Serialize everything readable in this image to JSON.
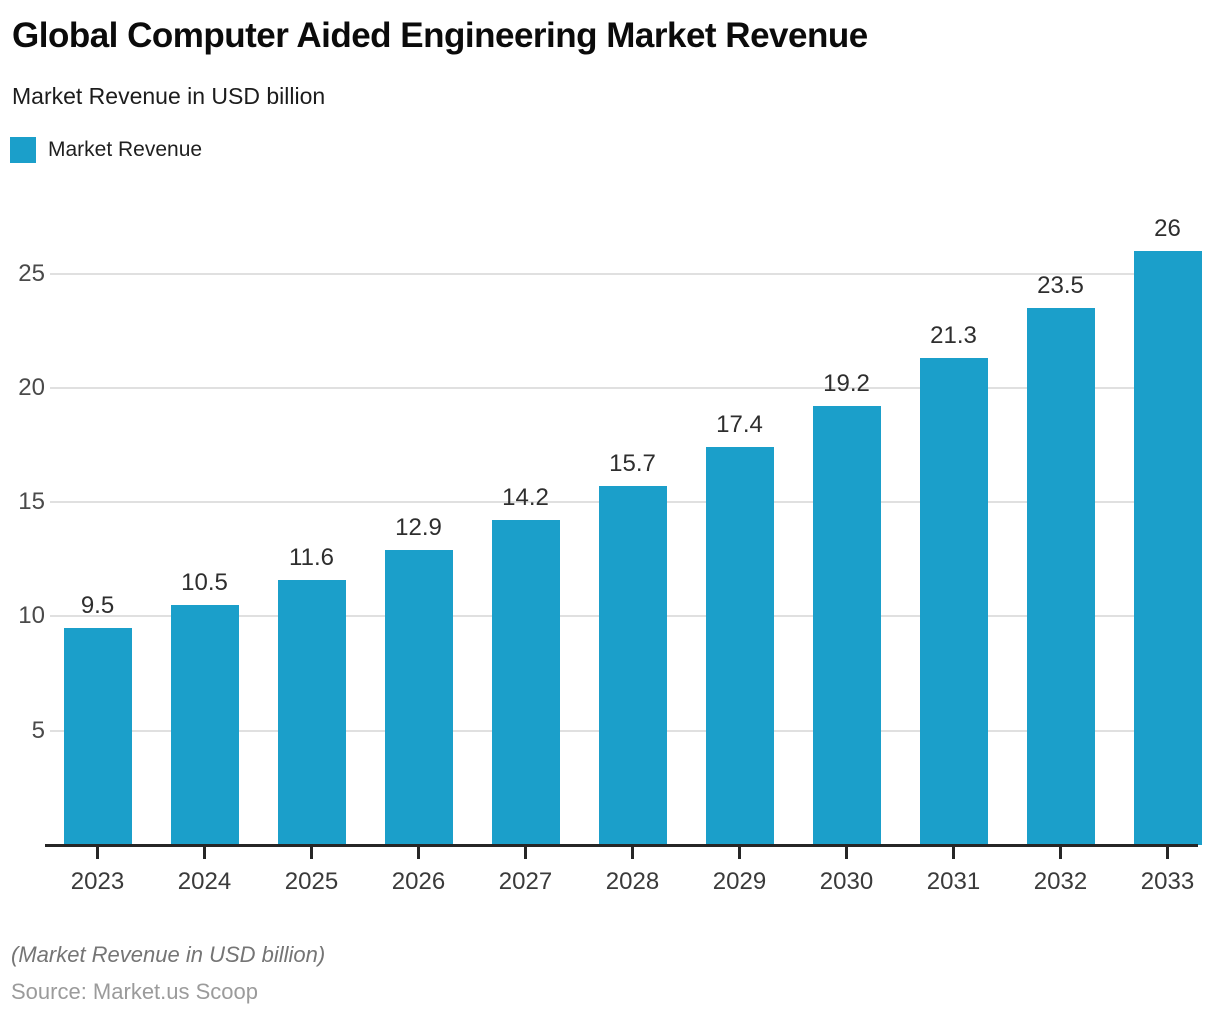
{
  "header": {
    "title": "Global Computer Aided Engineering Market Revenue",
    "subtitle": "Market Revenue in USD billion"
  },
  "legend": {
    "label": "Market Revenue"
  },
  "colors": {
    "bar": "#1b9fca",
    "gridline": "#e0e0e0",
    "axis": "#262626",
    "value_label": "#2e2e2e",
    "axis_label": "#3a3a3a"
  },
  "chart_data": {
    "type": "bar",
    "title": "Global Computer Aided Engineering Market Revenue",
    "subtitle": "Market Revenue in USD billion",
    "series_name": "Market Revenue",
    "categories": [
      "2023",
      "2024",
      "2025",
      "2026",
      "2027",
      "2028",
      "2029",
      "2030",
      "2031",
      "2032",
      "2033"
    ],
    "values": [
      9.5,
      10.5,
      11.6,
      12.9,
      14.2,
      15.7,
      17.4,
      19.2,
      21.3,
      23.5,
      26
    ],
    "data_labels": [
      "9.5",
      "10.5",
      "11.6",
      "12.9",
      "14.2",
      "15.7",
      "17.4",
      "19.2",
      "21.3",
      "23.5",
      "26"
    ],
    "xlabel": "",
    "ylabel": "",
    "yticks": [
      5,
      10,
      15,
      20,
      25
    ],
    "ylim": [
      0,
      27
    ],
    "grid": "horizontal",
    "legend_position": "top-left",
    "bar_color": "#1b9fca"
  },
  "footer": {
    "note": "(Market Revenue in USD billion)",
    "source": "Source: Market.us Scoop"
  }
}
